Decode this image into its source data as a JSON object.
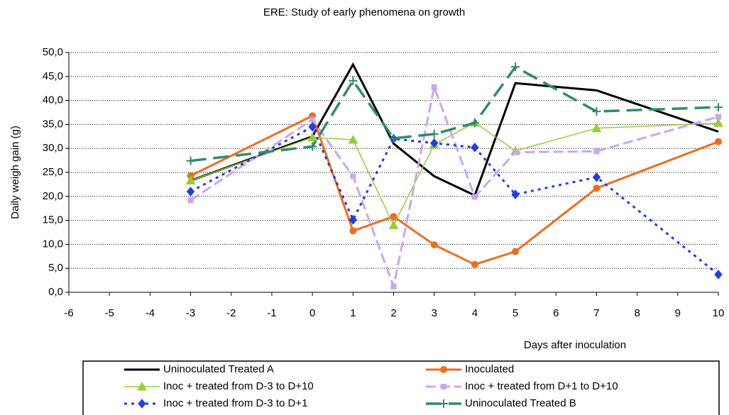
{
  "chart_data": {
    "type": "line",
    "title": "ERE: Study of early phenomena on growth",
    "y_label": "Daily weigh gain (g)",
    "x_label": "Days after inoculation",
    "x": [
      -3,
      0,
      1,
      2,
      3,
      4,
      5,
      7,
      10
    ],
    "xlim": [
      -6,
      10
    ],
    "xticks": [
      -6,
      -5,
      -4,
      -3,
      -2,
      -1,
      0,
      1,
      2,
      3,
      4,
      5,
      6,
      7,
      8,
      9,
      10
    ],
    "ylim": [
      0,
      50
    ],
    "yticks": [
      {
        "value": 0,
        "label": "0,0"
      },
      {
        "value": 5,
        "label": "5,0"
      },
      {
        "value": 10,
        "label": "10,0"
      },
      {
        "value": 15,
        "label": "15,0"
      },
      {
        "value": 20,
        "label": "20,0"
      },
      {
        "value": 25,
        "label": "25,0"
      },
      {
        "value": 30,
        "label": "30,0"
      },
      {
        "value": 35,
        "label": "35,0"
      },
      {
        "value": 40,
        "label": "40,0"
      },
      {
        "value": 45,
        "label": "45,0"
      },
      {
        "value": 50,
        "label": "50,0"
      }
    ],
    "grid": true,
    "legend": "bottom",
    "series": [
      {
        "name": "Uninoculated Treated A",
        "color": "#000000",
        "line_style": "solid",
        "line_width": 3,
        "marker": "none",
        "values": [
          23.3,
          32.5,
          47.5,
          31,
          24.2,
          20.2,
          43.6,
          42.1,
          33.5
        ]
      },
      {
        "name": "Inoculated",
        "color": "#f26b1d",
        "line_style": "solid",
        "line_width": 3,
        "marker": "circle",
        "values": [
          24.3,
          36.8,
          12.8,
          15.8,
          9.9,
          5.8,
          8.5,
          21.7,
          31.4
        ]
      },
      {
        "name": "Inoc + treated from D-3 to D+10",
        "color": "#99cc33",
        "line_style": "solid",
        "line_width": 1.5,
        "marker": "triangle",
        "values": [
          23.3,
          32.3,
          31.8,
          14,
          30.8,
          35.4,
          29.5,
          34.2,
          35.3
        ]
      },
      {
        "name": "Inoc + treated from D+1 to D+10",
        "color": "#c9a6f0",
        "line_style": "dashed",
        "line_width": 3,
        "marker": "square",
        "values": [
          19.2,
          36,
          24.2,
          1.2,
          42.8,
          19.9,
          29.2,
          29.4,
          36.6
        ]
      },
      {
        "name": "Inoc + treated from D-3 to D+1",
        "color": "#1f3fe0",
        "line_style": "dotted",
        "line_width": 3,
        "marker": "diamond",
        "values": [
          21,
          34.5,
          15.1,
          32,
          31.1,
          30.2,
          20.4,
          24,
          3.7
        ]
      },
      {
        "name": "Uninoculated Treated B",
        "color": "#2e8b6e",
        "line_style": "longdash",
        "line_width": 3.5,
        "marker": "plus",
        "values": [
          27.4,
          30.4,
          44.1,
          32.1,
          33,
          35.3,
          47,
          37.7,
          38.6
        ]
      }
    ]
  }
}
